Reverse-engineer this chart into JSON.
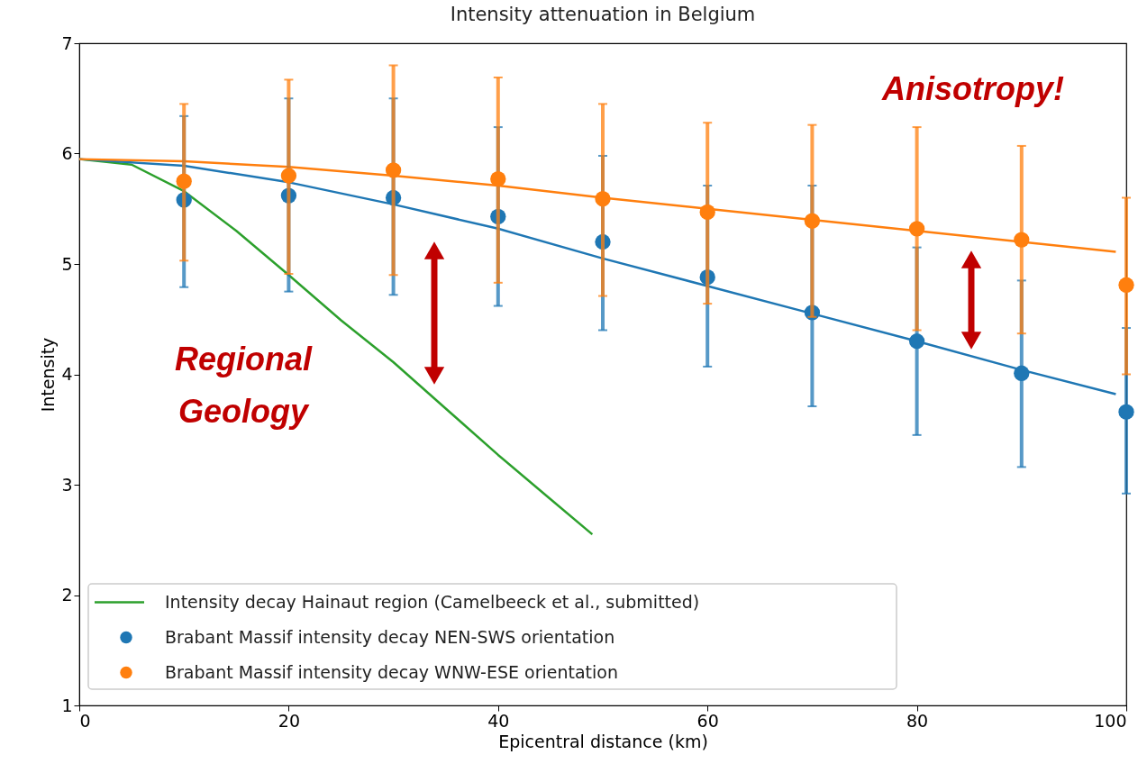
{
  "chart_data": {
    "type": "scatter",
    "title": "Intensity attenuation in Belgium",
    "xlabel": "Epicentral distance (km)",
    "ylabel": "Intensity",
    "xlim": [
      0,
      100
    ],
    "xticks": [
      0,
      20,
      40,
      60,
      80,
      100
    ],
    "ylim": [
      1,
      7
    ],
    "yticks": [
      1,
      2,
      3,
      4,
      5,
      6,
      7
    ],
    "grid": false,
    "legend": "bottom left",
    "annotations": [
      "Regional\nGeology",
      "Anisotropy!"
    ],
    "series": [
      {
        "type": "line",
        "marker": "none",
        "name": "Intensity decay Hainaut region (Camelbeeck et al., submitted)",
        "color": "#2ca02c",
        "x": [
          0,
          5,
          10,
          15,
          20,
          25,
          30,
          35,
          40,
          45,
          49
        ],
        "values": [
          5.95,
          5.9,
          5.66,
          5.3,
          4.9,
          4.49,
          4.11,
          3.69,
          3.27,
          2.87,
          2.55
        ]
      },
      {
        "type": "line",
        "marker": "none",
        "color": "#1f77b4",
        "x": [
          0,
          10,
          20,
          30,
          40,
          50,
          60,
          70,
          80,
          90,
          99
        ],
        "values": [
          5.95,
          5.89,
          5.74,
          5.54,
          5.32,
          5.05,
          4.8,
          4.55,
          4.3,
          4.04,
          3.82
        ]
      },
      {
        "type": "line",
        "marker": "none",
        "color": "#ff7f0e",
        "x": [
          0,
          10,
          20,
          30,
          40,
          50,
          60,
          70,
          80,
          90,
          99
        ],
        "values": [
          5.95,
          5.93,
          5.88,
          5.8,
          5.71,
          5.6,
          5.5,
          5.4,
          5.3,
          5.2,
          5.11
        ]
      },
      {
        "marker": "circle",
        "name": "Brabant Massif intensity decay NEN-SWS orientation",
        "color": "#1f77b4",
        "x": [
          10,
          20,
          30,
          40,
          50,
          60,
          70,
          80,
          90,
          100
        ],
        "values": [
          5.58,
          5.62,
          5.6,
          5.43,
          5.2,
          4.88,
          4.56,
          4.3,
          4.01,
          3.66
        ],
        "errors": [
          [
            4.79,
            6.34
          ],
          [
            4.75,
            6.5
          ],
          [
            4.72,
            6.5
          ],
          [
            4.62,
            6.24
          ],
          [
            4.4,
            5.98
          ],
          [
            4.07,
            5.71
          ],
          [
            3.71,
            5.71
          ],
          [
            3.45,
            5.15
          ],
          [
            3.16,
            4.85
          ],
          [
            2.92,
            4.42
          ]
        ]
      },
      {
        "marker": "circle",
        "name": "Brabant Massif intensity decay WNW-ESE orientation",
        "color": "#ff7f0e",
        "x": [
          10,
          20,
          30,
          40,
          50,
          60,
          70,
          80,
          90,
          100
        ],
        "values": [
          5.75,
          5.8,
          5.85,
          5.77,
          5.59,
          5.47,
          5.39,
          5.32,
          5.22,
          4.81
        ],
        "errors": [
          [
            5.03,
            6.45
          ],
          [
            4.91,
            6.67
          ],
          [
            4.9,
            6.8
          ],
          [
            4.83,
            6.69
          ],
          [
            4.71,
            6.45
          ],
          [
            4.64,
            6.28
          ],
          [
            4.52,
            6.26
          ],
          [
            4.4,
            6.24
          ],
          [
            4.37,
            6.07
          ],
          [
            4.0,
            5.6
          ]
        ]
      }
    ]
  }
}
